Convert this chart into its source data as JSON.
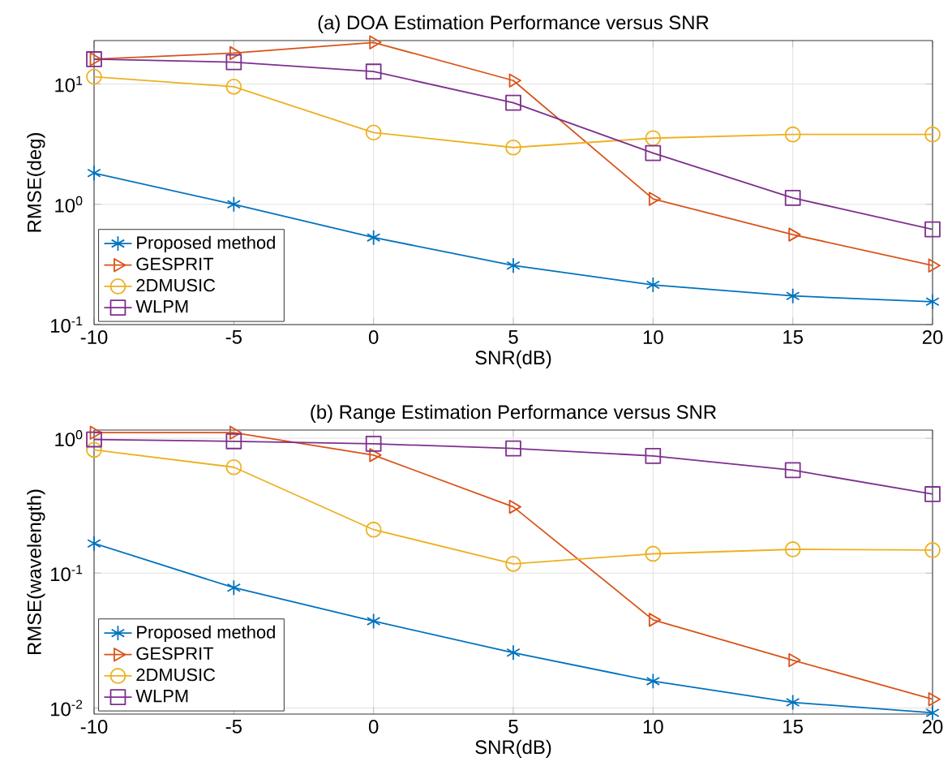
{
  "chart_data": [
    {
      "type": "line",
      "title": "(a) DOA Estimation Performance versus SNR",
      "xlabel": "SNR(dB)",
      "ylabel": "RMSE(deg)",
      "log": "y",
      "grid": true,
      "legend": "bottom left",
      "x": [
        -10,
        -5,
        0,
        5,
        10,
        15,
        20
      ],
      "xlim": [
        -10,
        20
      ],
      "xticks": [
        -10,
        -5,
        0,
        5,
        10,
        15,
        20
      ],
      "ylim": [
        0.1,
        23
      ],
      "yticks": [
        {
          "value": 0.1,
          "label": "10$^{-1}$"
        },
        {
          "value": 1,
          "label": "10$^{0}$"
        },
        {
          "value": 10,
          "label": "10$^{1}$"
        }
      ],
      "series": [
        {
          "name": "Proposed method",
          "color": "#0072bd",
          "marker": "cross",
          "values": [
            1.82,
            1.0,
            0.53,
            0.31,
            0.214,
            0.173,
            0.155
          ]
        },
        {
          "name": "GESPRIT",
          "color": "#d95319",
          "marker": "triangle",
          "values": [
            16.1,
            18.1,
            22.2,
            10.7,
            1.11,
            0.56,
            0.31
          ]
        },
        {
          "name": "2DMUSIC",
          "color": "#edb120",
          "marker": "circle",
          "values": [
            11.5,
            9.5,
            3.95,
            2.97,
            3.55,
            3.81,
            3.81
          ]
        },
        {
          "name": "WLPM",
          "color": "#7e2f8e",
          "marker": "square",
          "values": [
            16.1,
            15.2,
            12.7,
            7.0,
            2.67,
            1.13,
            0.62
          ]
        }
      ]
    },
    {
      "type": "line",
      "title": "(b) Range Estimation Performance versus SNR",
      "xlabel": "SNR(dB)",
      "ylabel": "RMSE(wavelength)",
      "log": "y",
      "grid": true,
      "legend": "bottom left",
      "x": [
        -10,
        -5,
        0,
        5,
        10,
        15,
        20
      ],
      "xlim": [
        -10,
        20
      ],
      "xticks": [
        -10,
        -5,
        0,
        5,
        10,
        15,
        20
      ],
      "ylim": [
        0.009,
        1.15
      ],
      "yticks": [
        {
          "value": 0.01,
          "label": "10$^{-2}$"
        },
        {
          "value": 0.1,
          "label": "10$^{-1}$"
        },
        {
          "value": 1,
          "label": "10$^{0}$"
        }
      ],
      "series": [
        {
          "name": "Proposed method",
          "color": "#0072bd",
          "marker": "cross",
          "values": [
            0.166,
            0.078,
            0.044,
            0.0257,
            0.0158,
            0.011,
            0.0092
          ]
        },
        {
          "name": "GESPRIT",
          "color": "#d95319",
          "marker": "triangle",
          "values": [
            1.1,
            1.1,
            0.75,
            0.31,
            0.045,
            0.0226,
            0.0116
          ]
        },
        {
          "name": "2DMUSIC",
          "color": "#edb120",
          "marker": "circle",
          "values": [
            0.82,
            0.61,
            0.21,
            0.117,
            0.139,
            0.15,
            0.148
          ]
        },
        {
          "name": "WLPM",
          "color": "#7e2f8e",
          "marker": "square",
          "values": [
            0.98,
            0.95,
            0.91,
            0.84,
            0.74,
            0.58,
            0.385
          ]
        }
      ]
    }
  ]
}
